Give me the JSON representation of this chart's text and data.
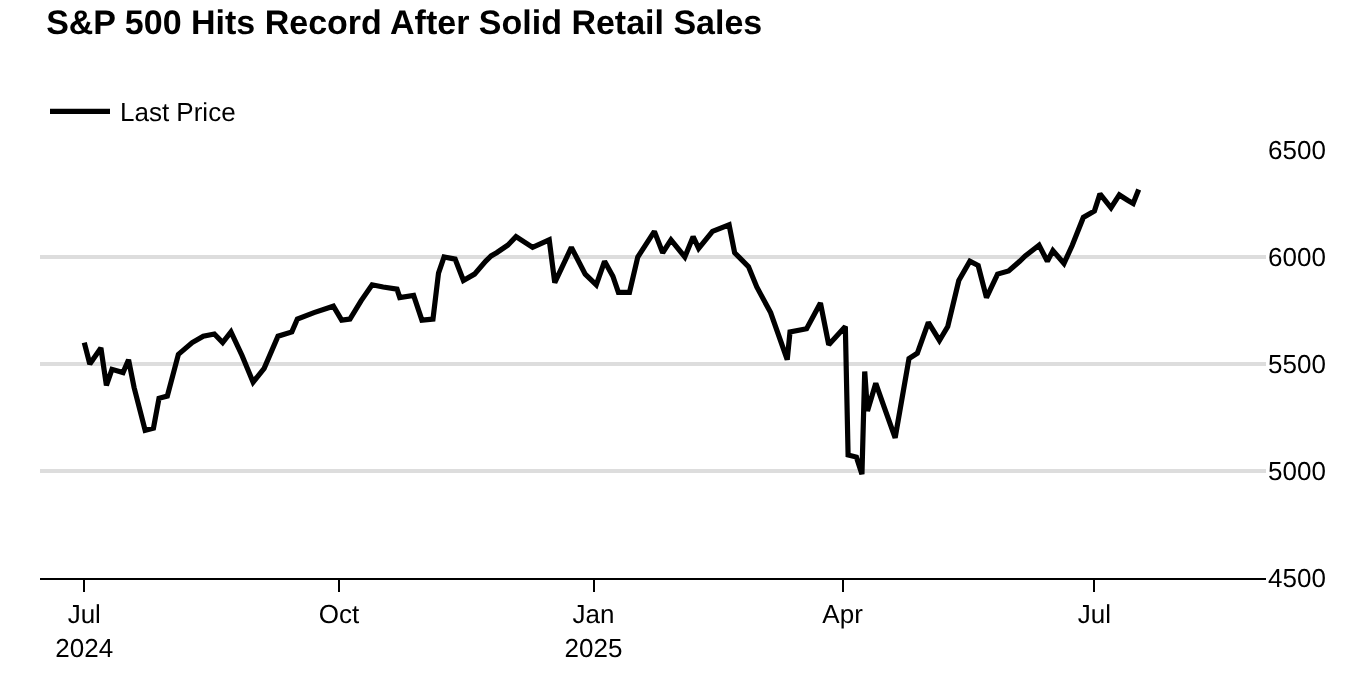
{
  "chart_data": {
    "type": "line",
    "title": "S&P 500 Hits Record After Solid Retail Sales",
    "x": [
      "2024-07-01",
      "2024-07-03",
      "2024-07-07",
      "2024-07-09",
      "2024-07-11",
      "2024-07-15",
      "2024-07-17",
      "2024-07-19",
      "2024-07-23",
      "2024-07-26",
      "2024-07-28",
      "2024-07-31",
      "2024-08-04",
      "2024-08-09",
      "2024-08-13",
      "2024-08-17",
      "2024-08-20",
      "2024-08-23",
      "2024-08-27",
      "2024-08-31",
      "2024-09-04",
      "2024-09-09",
      "2024-09-14",
      "2024-09-16",
      "2024-09-22",
      "2024-09-29",
      "2024-10-02",
      "2024-10-05",
      "2024-10-09",
      "2024-10-13",
      "2024-10-17",
      "2024-10-22",
      "2024-10-23",
      "2024-10-28",
      "2024-10-31",
      "2024-11-04",
      "2024-11-06",
      "2024-11-08",
      "2024-11-12",
      "2024-11-15",
      "2024-11-19",
      "2024-11-23",
      "2024-11-25",
      "2024-11-27",
      "2024-12-01",
      "2024-12-04",
      "2024-12-10",
      "2024-12-16",
      "2024-12-18",
      "2024-12-24",
      "2024-12-29",
      "2025-01-02",
      "2025-01-05",
      "2025-01-08",
      "2025-01-10",
      "2025-01-14",
      "2025-01-17",
      "2025-01-23",
      "2025-01-26",
      "2025-01-29",
      "2025-02-03",
      "2025-02-06",
      "2025-02-08",
      "2025-02-13",
      "2025-02-19",
      "2025-02-21",
      "2025-02-26",
      "2025-03-01",
      "2025-03-06",
      "2025-03-12",
      "2025-03-13",
      "2025-03-19",
      "2025-03-24",
      "2025-03-27",
      "2025-04-02",
      "2025-04-03",
      "2025-04-06",
      "2025-04-08",
      "2025-04-09",
      "2025-04-10",
      "2025-04-13",
      "2025-04-16",
      "2025-04-20",
      "2025-04-25",
      "2025-04-28",
      "2025-05-02",
      "2025-05-06",
      "2025-05-09",
      "2025-05-13",
      "2025-05-17",
      "2025-05-20",
      "2025-05-23",
      "2025-05-27",
      "2025-05-31",
      "2025-06-04",
      "2025-06-06",
      "2025-06-11",
      "2025-06-14",
      "2025-06-16",
      "2025-06-20",
      "2025-06-23",
      "2025-06-27",
      "2025-07-01",
      "2025-07-03",
      "2025-07-07",
      "2025-07-10",
      "2025-07-13",
      "2025-07-15",
      "2025-07-17"
    ],
    "series": [
      {
        "name": "Last Price",
        "color": "#000000",
        "values": [
          5600,
          5500,
          5575,
          5400,
          5475,
          5460,
          5520,
          5390,
          5190,
          5200,
          5340,
          5350,
          5545,
          5600,
          5630,
          5640,
          5600,
          5650,
          5540,
          5415,
          5480,
          5630,
          5650,
          5710,
          5740,
          5770,
          5705,
          5710,
          5795,
          5870,
          5860,
          5850,
          5810,
          5820,
          5705,
          5710,
          5925,
          6000,
          5990,
          5890,
          5920,
          5980,
          6005,
          6020,
          6055,
          6095,
          6045,
          6080,
          5880,
          6045,
          5920,
          5870,
          5980,
          5910,
          5835,
          5835,
          6000,
          6120,
          6020,
          6080,
          6000,
          6095,
          6040,
          6120,
          6150,
          6020,
          5955,
          5860,
          5740,
          5520,
          5650,
          5665,
          5785,
          5590,
          5675,
          5075,
          5065,
          4985,
          5465,
          5280,
          5410,
          5300,
          5155,
          5525,
          5550,
          5695,
          5610,
          5675,
          5890,
          5980,
          5960,
          5810,
          5920,
          5935,
          5980,
          6005,
          6055,
          5980,
          6030,
          5970,
          6055,
          6185,
          6215,
          6295,
          6230,
          6290,
          6265,
          6250,
          6315
        ]
      }
    ],
    "xlim": [
      "2024-06-15",
      "2025-09-01"
    ],
    "xticks": [
      {
        "value": "2024-07-01",
        "label": "Jul\n2024"
      },
      {
        "value": "2024-10-01",
        "label": "Oct"
      },
      {
        "value": "2025-01-01",
        "label": "Jan\n2025"
      },
      {
        "value": "2025-04-01",
        "label": "Apr"
      },
      {
        "value": "2025-07-01",
        "label": "Jul"
      }
    ],
    "ylim": [
      4500,
      6500
    ],
    "yticks": [
      4500,
      5000,
      5500,
      6000,
      6500
    ],
    "grid": "y",
    "legend": "top left",
    "marker": "none",
    "line_style": "solid"
  }
}
